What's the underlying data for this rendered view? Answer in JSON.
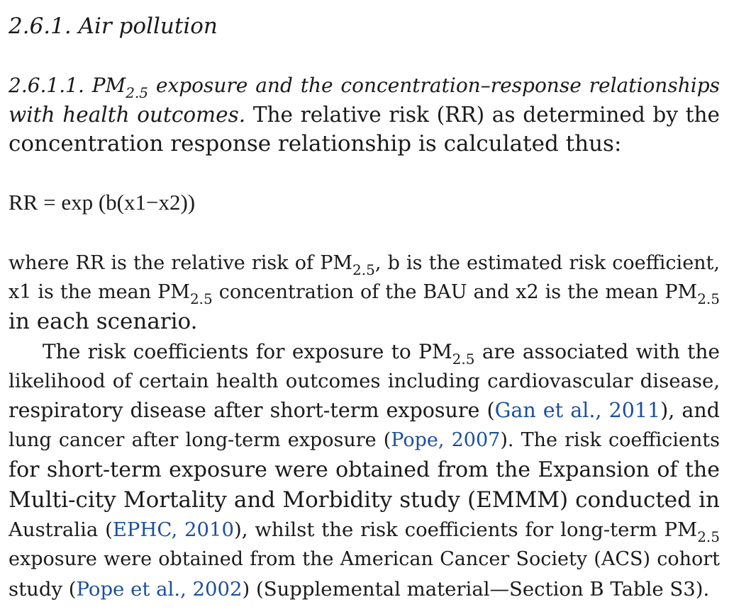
{
  "section": {
    "heading": "2.6.1. Air pollution"
  },
  "subsection": {
    "heading_prefix": "2.6.1.1. PM",
    "heading_sub": "2.5",
    "heading_line1_rest": " exposure and the concentration–response relationships",
    "heading_line2": "with health outcomes.",
    "intro_line2_rest": " The relative risk (RR) as determined by the",
    "intro_line3": "concentration response relationship is calculated thus:"
  },
  "equation": {
    "text": "RR = exp (b(x1−x2))"
  },
  "paragraph1": {
    "l1_a": "where RR is the relative risk of PM",
    "l1_sub": "2.5",
    "l1_b": ", b is the estimated risk coefficient,",
    "l2_a": "x1 is the mean PM",
    "l2_sub1": "2.5",
    "l2_b": " concentration of the BAU and x2 is the mean PM",
    "l2_sub2": "2.5",
    "l3": "in each scenario."
  },
  "paragraph2": {
    "l1_a": "The risk coefficients for exposure to PM",
    "l1_sub": "2.5",
    "l1_b": " are associated with the",
    "l2": "likelihood of certain health outcomes including cardiovascular disease,",
    "l3_a": "respiratory disease after short-term exposure (",
    "l3_ref": "Gan et al., 2011",
    "l3_b": "), and",
    "l4_a": "lung cancer after long-term exposure (",
    "l4_ref": "Pope, 2007",
    "l4_b": "). The risk coefficients",
    "l5": "for short-term exposure were obtained from the Expansion of the",
    "l6": "Multi-city Mortality and Morbidity study (EMMM) conducted in",
    "l7_a": "Australia (",
    "l7_ref": "EPHC, 2010",
    "l7_b": "), whilst the risk coefficients for long-term PM",
    "l7_sub": "2.5",
    "l8": "exposure were obtained from the American Cancer Society (ACS) cohort",
    "l9_a": "study (",
    "l9_ref": "Pope et al., 2002",
    "l9_b": ") (Supplemental material—Section B Table S3)."
  },
  "colors": {
    "text": "#1a1a1a",
    "link": "#1c4f9c"
  }
}
